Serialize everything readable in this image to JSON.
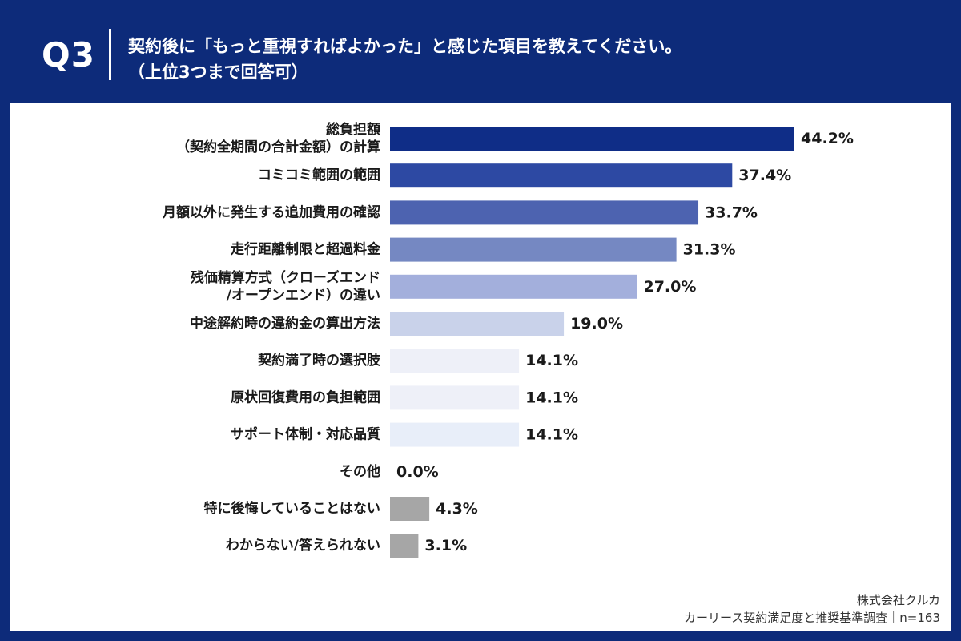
{
  "header": {
    "q_number": "Q3",
    "question_line1": "契約後に「もっと重視すればよかった」と感じた項目を教えてください。",
    "question_line2": "（上位3つまで回答可）"
  },
  "footer": {
    "company": "株式会社クルカ",
    "survey": "カーリース契約満足度と推奨基準調査｜n=163"
  },
  "chart_data": {
    "type": "bar",
    "orientation": "horizontal",
    "unit": "%",
    "xlim": [
      0,
      44.2
    ],
    "categories": [
      [
        "総負担額",
        "（契約全期間の合計金額）の計算"
      ],
      [
        "コミコミ範囲の範囲"
      ],
      [
        "月額以外に発生する追加費用の確認"
      ],
      [
        "走行距離制限と超過料金"
      ],
      [
        "残価精算方式（クローズエンド",
        "/オープンエンド）の違い"
      ],
      [
        "中途解約時の違約金の算出方法"
      ],
      [
        "契約満了時の選択肢"
      ],
      [
        "原状回復費用の負担範囲"
      ],
      [
        "サポート体制・対応品質"
      ],
      [
        "その他"
      ],
      [
        "特に後悔していることはない"
      ],
      [
        "わからない/答えられない"
      ]
    ],
    "values": [
      44.2,
      37.4,
      33.7,
      31.3,
      27.0,
      19.0,
      14.1,
      14.1,
      14.1,
      0.0,
      4.3,
      3.1
    ],
    "value_labels": [
      "44.2%",
      "37.4%",
      "33.7%",
      "31.3%",
      "27.0%",
      "19.0%",
      "14.1%",
      "14.1%",
      "14.1%",
      "0.0%",
      "4.3%",
      "3.1%"
    ],
    "colors": [
      "#0f2d87",
      "#2d49a3",
      "#4d63b0",
      "#7588c2",
      "#a3afdc",
      "#c9d2ea",
      "#eef0f8",
      "#eef0f8",
      "#e8eef9",
      "#ffffff",
      "#a6a6a6",
      "#a6a6a6"
    ],
    "grid": false
  }
}
